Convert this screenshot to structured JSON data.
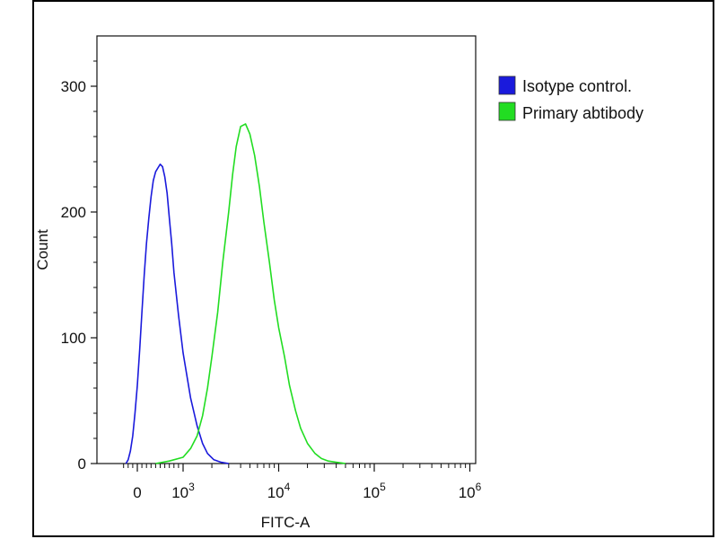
{
  "chart_data": {
    "type": "area",
    "title": "",
    "xlabel": "FITC-A",
    "ylabel": "Count",
    "xscale": "biexponential (log above 10^3)",
    "xlim": [
      -300,
      1000000
    ],
    "ylim": [
      0,
      340
    ],
    "y_ticks": [
      "0",
      "100",
      "200",
      "300"
    ],
    "x_ticks": [
      {
        "base": "0",
        "exp": ""
      },
      {
        "base": "10",
        "exp": "3"
      },
      {
        "base": "10",
        "exp": "4"
      },
      {
        "base": "10",
        "exp": "5"
      },
      {
        "base": "10",
        "exp": "6"
      }
    ],
    "grid": false,
    "legend_position": "right",
    "series": [
      {
        "name": "Isotype control.",
        "color": "#1a1adc",
        "x": [
          -250,
          -200,
          -150,
          -100,
          -50,
          0,
          50,
          100,
          150,
          200,
          250,
          300,
          350,
          400,
          450,
          500,
          550,
          600,
          650,
          700,
          750,
          800,
          900,
          1000,
          1200,
          1400,
          1600,
          1800,
          2100,
          2500,
          3000
        ],
        "values": [
          0,
          3,
          10,
          22,
          40,
          62,
          90,
          120,
          150,
          175,
          195,
          212,
          225,
          232,
          235,
          238,
          236,
          228,
          215,
          195,
          175,
          152,
          118,
          88,
          52,
          30,
          16,
          8,
          3,
          1,
          0
        ]
      },
      {
        "name": "Primary abtibody",
        "color": "#22dd22",
        "x": [
          400,
          700,
          1000,
          1200,
          1400,
          1600,
          1800,
          2000,
          2300,
          2600,
          3000,
          3300,
          3600,
          4000,
          4500,
          5000,
          5600,
          6300,
          7000,
          8000,
          9000,
          10000,
          11500,
          13000,
          15000,
          17000,
          20000,
          24000,
          28000,
          33000,
          40000,
          50000
        ],
        "values": [
          0,
          2,
          5,
          12,
          22,
          38,
          60,
          85,
          120,
          160,
          200,
          230,
          252,
          268,
          270,
          262,
          245,
          220,
          192,
          160,
          130,
          108,
          85,
          62,
          42,
          28,
          16,
          8,
          4,
          2,
          1,
          0
        ]
      }
    ]
  }
}
